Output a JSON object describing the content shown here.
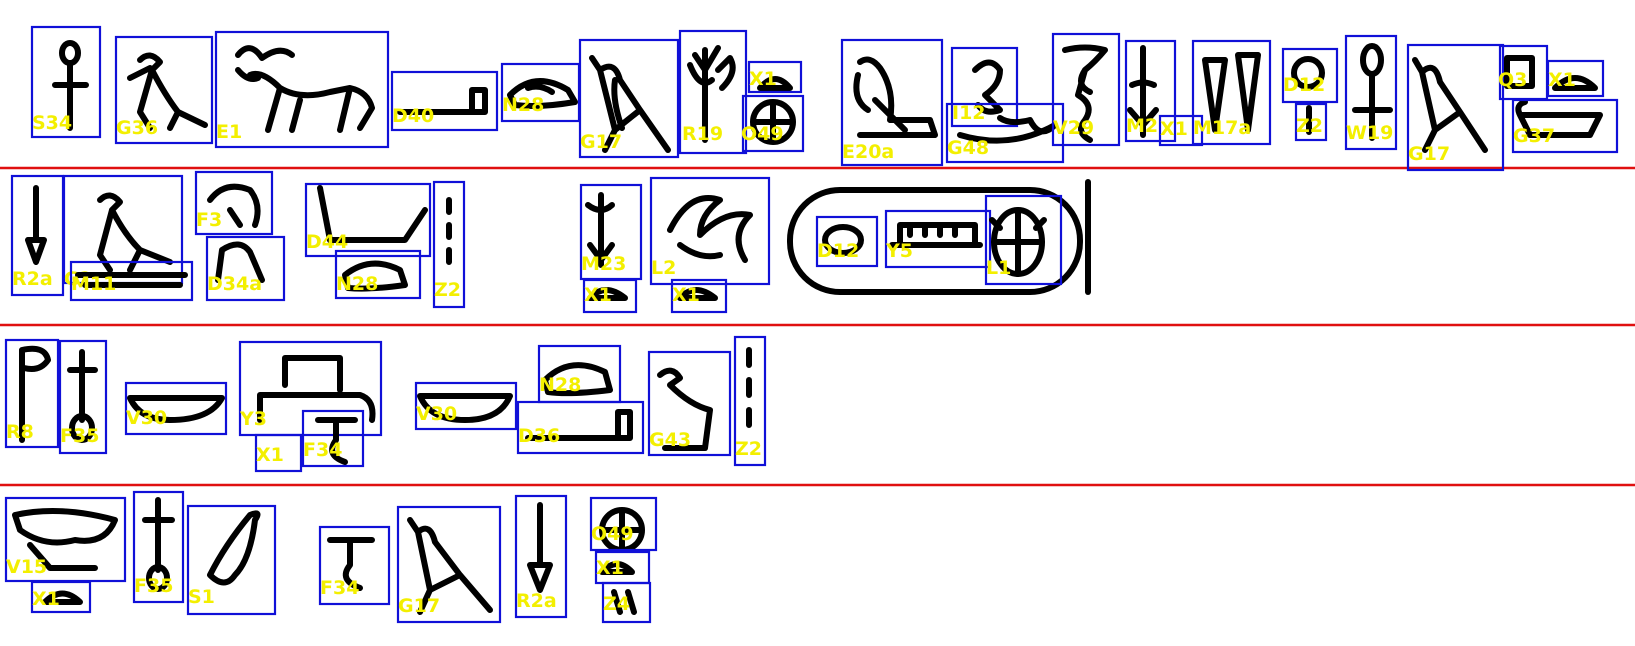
{
  "labels": {
    "r1": [
      "S34",
      "G36",
      "E1",
      "D40",
      "N28",
      "G17",
      "R19",
      "X1",
      "O49",
      "E20a",
      "I12",
      "G48",
      "V29",
      "M2",
      "X1",
      "M17a",
      "D12",
      "Z2",
      "W19",
      "G17",
      "Q3",
      "X1",
      "G37"
    ],
    "r2": [
      "R2a",
      "G?",
      "M11",
      "F3",
      "D34a",
      "D44",
      "N28",
      "Z2",
      "M23",
      "X1",
      "L2",
      "X1",
      "D12",
      "Y5",
      "L1"
    ],
    "r3": [
      "R8",
      "F35",
      "V30",
      "Y3",
      "X1",
      "F34",
      "V30",
      "N28",
      "D36",
      "G43",
      "Z2"
    ],
    "r4": [
      "V15",
      "X1",
      "F35",
      "S1",
      "F34",
      "G17",
      "R2a",
      "O49",
      "X1",
      "Z4"
    ]
  },
  "colors": {
    "box": "#1010d8",
    "label": "#f3ef00",
    "separator": "#e01010",
    "ink": "#000000"
  }
}
